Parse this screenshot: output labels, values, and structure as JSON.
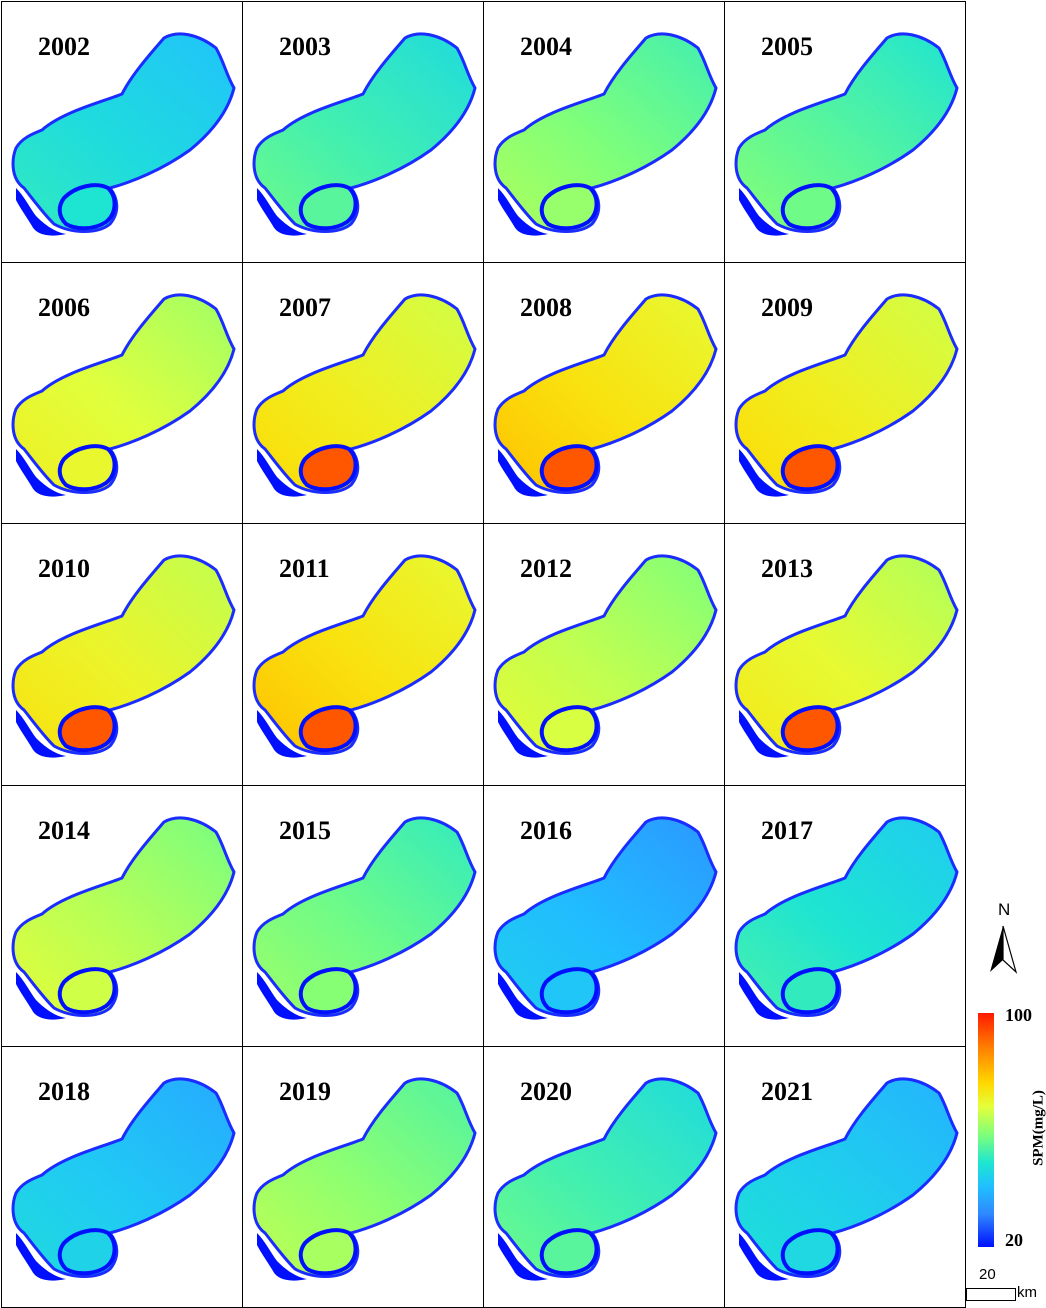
{
  "panels": [
    {
      "year": "2002",
      "level": 0.32
    },
    {
      "year": "2003",
      "level": 0.4
    },
    {
      "year": "2004",
      "level": 0.48
    },
    {
      "year": "2005",
      "level": 0.43
    },
    {
      "year": "2006",
      "level": 0.6
    },
    {
      "year": "2007",
      "level": 0.66
    },
    {
      "year": "2008",
      "level": 0.7
    },
    {
      "year": "2009",
      "level": 0.66
    },
    {
      "year": "2010",
      "level": 0.64
    },
    {
      "year": "2011",
      "level": 0.7
    },
    {
      "year": "2012",
      "level": 0.56
    },
    {
      "year": "2013",
      "level": 0.62
    },
    {
      "year": "2014",
      "level": 0.55
    },
    {
      "year": "2015",
      "level": 0.46
    },
    {
      "year": "2016",
      "level": 0.22
    },
    {
      "year": "2017",
      "level": 0.35
    },
    {
      "year": "2018",
      "level": 0.26
    },
    {
      "year": "2019",
      "level": 0.5
    },
    {
      "year": "2020",
      "level": 0.4
    },
    {
      "year": "2021",
      "level": 0.28
    }
  ],
  "legend": {
    "title": "SPM(mg/L)",
    "max_label": "100",
    "min_label": "20",
    "colors": [
      "#ff1a00",
      "#ff7a00",
      "#ffd800",
      "#e4ff3a",
      "#7fff7a",
      "#1ee6d0",
      "#20c0ff",
      "#2f88ff",
      "#0010ff"
    ]
  },
  "north_arrow": {
    "label": "N"
  },
  "scale_bar": {
    "value": "20",
    "unit": "km"
  }
}
